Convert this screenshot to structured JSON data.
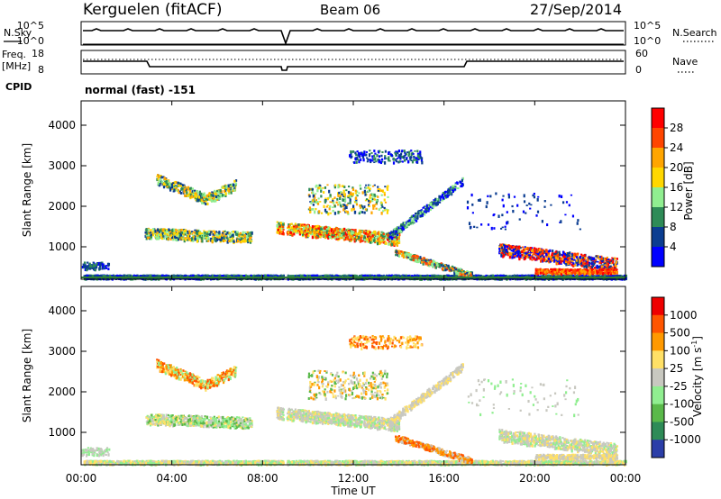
{
  "header": {
    "station": "Kerguelen (fitACF)",
    "beam": "Beam 06",
    "date": "27/Sep/2014"
  },
  "sky_panel": {
    "left_label": "N.Sky",
    "right_label": "N.Search",
    "left_ticks": [
      "10^5",
      "10^0"
    ],
    "right_ticks": [
      "10^5",
      "10^0"
    ]
  },
  "freq_panel": {
    "left_label_1": "Freq.",
    "left_label_2": "[MHz]",
    "right_label": "Nave",
    "left_ticks": [
      "18",
      "8"
    ],
    "right_ticks": [
      "60",
      "0"
    ]
  },
  "cpid": {
    "label": "CPID",
    "value": "normal (fast) -151"
  },
  "chart_data": [
    {
      "type": "heatmap",
      "name": "power",
      "xlabel": "Time UT",
      "ylabel": "Slant Range [km]",
      "x_ticks": [
        "00:00",
        "04:00",
        "08:00",
        "12:00",
        "16:00",
        "20:00",
        "00:00"
      ],
      "y_ticks": [
        "1000",
        "2000",
        "3000",
        "4000"
      ],
      "ylim": [
        200,
        4600
      ],
      "colorbar_label": "Power [dB]",
      "colorbar_ticks": [
        "28",
        "24",
        "20",
        "16",
        "12",
        "8",
        "4"
      ],
      "colorbar_colors": [
        "#0000ff",
        "#0b3d91",
        "#2e8b57",
        "#90ee90",
        "#ffd700",
        "#ffa500",
        "#ff4500",
        "#ff0000"
      ]
    },
    {
      "type": "heatmap",
      "name": "velocity",
      "xlabel": "Time UT",
      "ylabel": "Slant Range [km]",
      "x_ticks": [
        "00:00",
        "04:00",
        "08:00",
        "12:00",
        "16:00",
        "20:00",
        "00:00"
      ],
      "y_ticks": [
        "1000",
        "2000",
        "3000",
        "4000"
      ],
      "ylim": [
        200,
        4600
      ],
      "colorbar_label": "Velocity [m s",
      "colorbar_label_sup": "-1",
      "colorbar_label_end": "]",
      "colorbar_ticks": [
        "1000",
        "500",
        "100",
        "25",
        "-25",
        "-100",
        "-500",
        "-1000"
      ],
      "colorbar_colors": [
        "#2b3ea8",
        "#2e8b57",
        "#5ab94a",
        "#90ee90",
        "#c8c8c0",
        "#ffe066",
        "#ff9900",
        "#ff5500",
        "#ee0000"
      ]
    }
  ]
}
